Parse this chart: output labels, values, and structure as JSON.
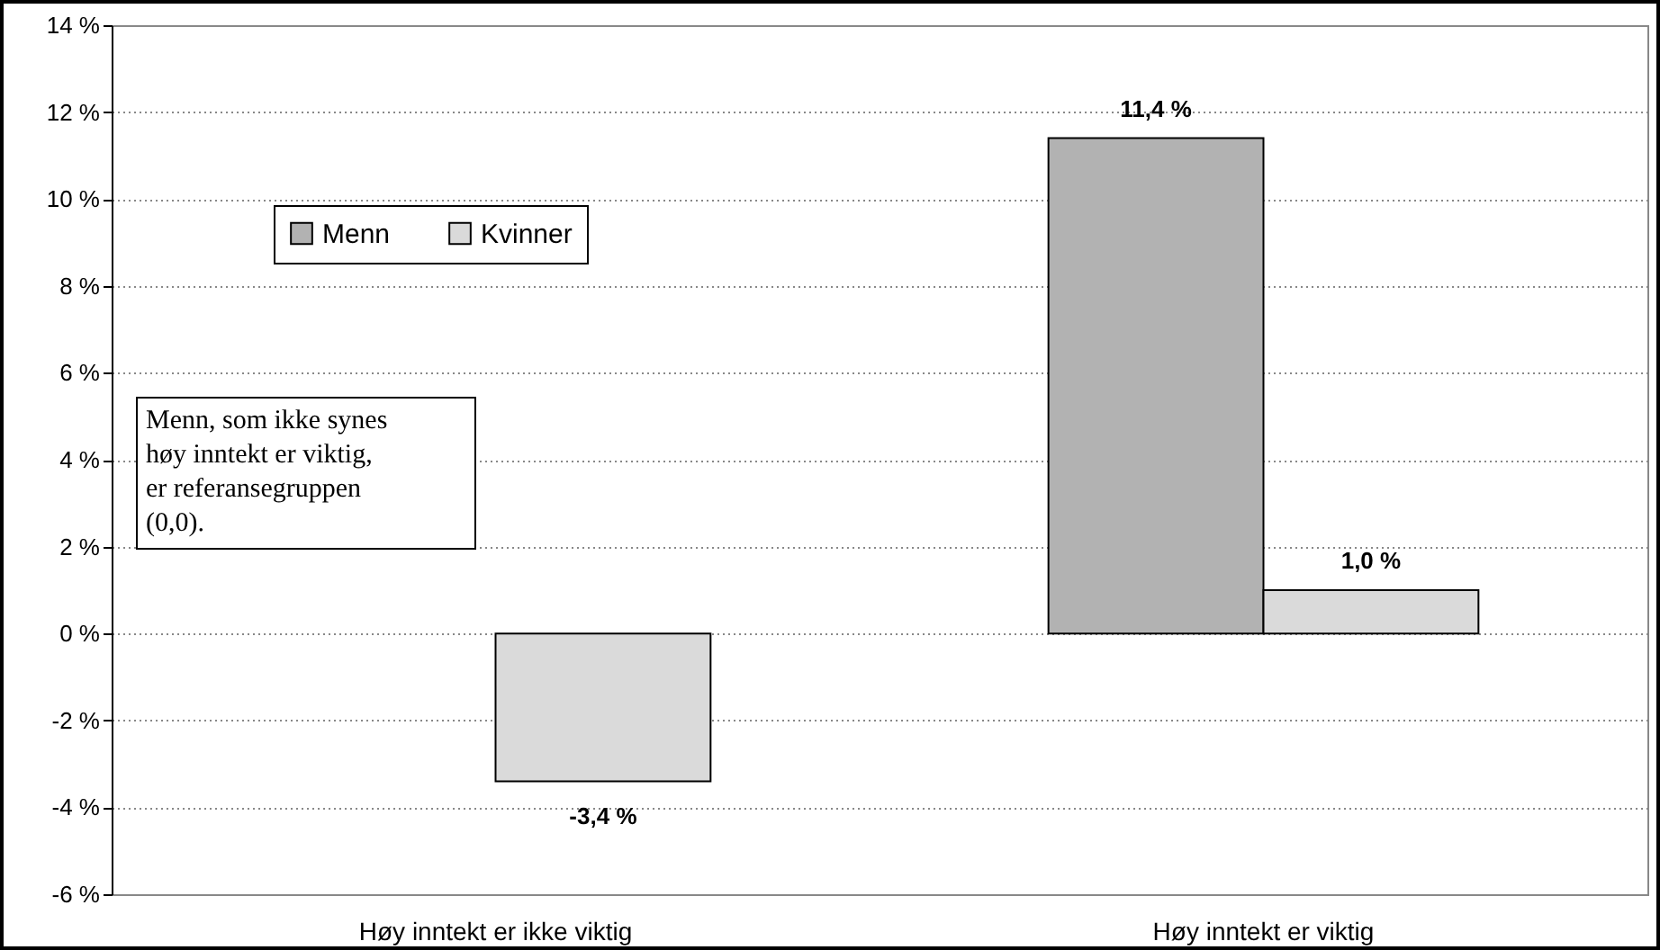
{
  "chart_data": {
    "type": "bar",
    "categories": [
      "Høy inntekt er ikke viktig",
      "Høy inntekt er viktig"
    ],
    "series": [
      {
        "name": "Menn",
        "color": "#b2b2b2",
        "values": [
          null,
          11.4
        ],
        "value_labels": [
          null,
          "11,4 %"
        ]
      },
      {
        "name": "Kvinner",
        "color": "#dadada",
        "values": [
          -3.4,
          1.0
        ],
        "value_labels": [
          "-3,4 %",
          "1,0 %"
        ]
      }
    ],
    "ylim": [
      -6,
      14
    ],
    "yticks": [
      {
        "value": -6,
        "label": "-6 %"
      },
      {
        "value": -4,
        "label": "-4 %"
      },
      {
        "value": -2,
        "label": "-2 %"
      },
      {
        "value": 0,
        "label": "0 %"
      },
      {
        "value": 2,
        "label": "2 %"
      },
      {
        "value": 4,
        "label": "4 %"
      },
      {
        "value": 6,
        "label": "6 %"
      },
      {
        "value": 8,
        "label": "8 %"
      },
      {
        "value": 10,
        "label": "10 %"
      },
      {
        "value": 12,
        "label": "12 %"
      },
      {
        "value": 14,
        "label": "14 %"
      }
    ],
    "grid": "y",
    "legend": "top left",
    "annotations": [
      "Menn, som ikke synes høy inntekt er viktig, er referansegruppen (0,0)."
    ]
  }
}
